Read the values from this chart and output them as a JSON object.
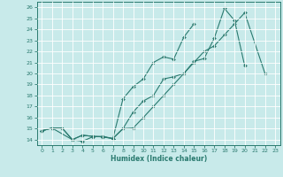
{
  "xlabel": "Humidex (Indice chaleur)",
  "xlim": [
    -0.5,
    23.5
  ],
  "ylim": [
    13.5,
    26.5
  ],
  "xticks": [
    0,
    1,
    2,
    3,
    4,
    5,
    6,
    7,
    8,
    9,
    10,
    11,
    12,
    13,
    14,
    15,
    16,
    17,
    18,
    19,
    20,
    21,
    22,
    23
  ],
  "yticks": [
    14,
    15,
    16,
    17,
    18,
    19,
    20,
    21,
    22,
    23,
    24,
    25,
    26
  ],
  "line_color": "#2a7a6f",
  "bg_color": "#c8eaea",
  "grid_color": "#ffffff",
  "curve1_pts": [
    [
      0,
      14.8
    ],
    [
      1,
      15.05
    ],
    [
      2,
      15.05
    ],
    [
      3,
      14.0
    ],
    [
      4,
      13.85
    ],
    [
      5,
      14.25
    ],
    [
      6,
      14.3
    ],
    [
      7,
      14.1
    ],
    [
      8,
      15.0
    ],
    [
      9,
      16.5
    ],
    [
      10,
      17.5
    ],
    [
      11,
      18.0
    ],
    [
      12,
      19.5
    ],
    [
      13,
      19.7
    ],
    [
      14,
      20.0
    ],
    [
      15,
      21.1
    ],
    [
      16,
      21.35
    ],
    [
      17,
      23.2
    ],
    [
      18,
      25.9
    ],
    [
      19,
      24.8
    ],
    [
      20,
      20.7
    ]
  ],
  "curve2_pts": [
    [
      0,
      14.8
    ],
    [
      1,
      15.05
    ],
    [
      3,
      14.0
    ],
    [
      4,
      14.4
    ],
    [
      5,
      14.3
    ],
    [
      6,
      14.25
    ],
    [
      7,
      14.1
    ],
    [
      8,
      17.7
    ],
    [
      9,
      18.8
    ],
    [
      10,
      19.5
    ],
    [
      11,
      21.0
    ],
    [
      12,
      21.5
    ],
    [
      13,
      21.3
    ],
    [
      14,
      23.3
    ],
    [
      15,
      24.5
    ]
  ],
  "curve3_pts": [
    [
      0,
      14.8
    ],
    [
      1,
      15.05
    ],
    [
      2,
      15.05
    ],
    [
      3,
      14.0
    ],
    [
      4,
      14.4
    ],
    [
      5,
      14.3
    ],
    [
      6,
      14.25
    ],
    [
      7,
      14.1
    ],
    [
      8,
      15.0
    ],
    [
      9,
      15.05
    ],
    [
      10,
      16.0
    ],
    [
      11,
      17.0
    ],
    [
      12,
      18.0
    ],
    [
      13,
      19.0
    ],
    [
      14,
      20.0
    ],
    [
      15,
      21.0
    ],
    [
      16,
      22.0
    ],
    [
      17,
      22.5
    ],
    [
      18,
      23.5
    ],
    [
      19,
      24.5
    ],
    [
      20,
      25.5
    ],
    [
      22,
      20.0
    ]
  ]
}
